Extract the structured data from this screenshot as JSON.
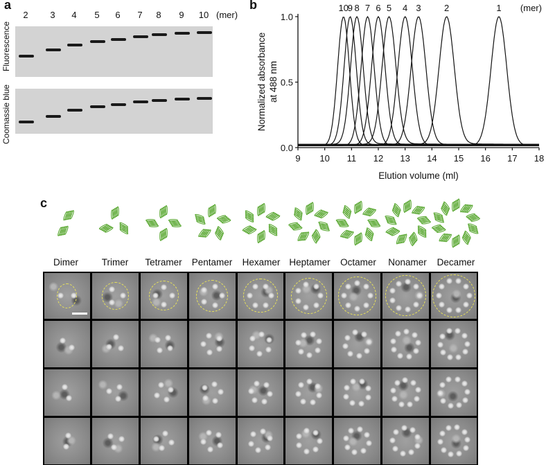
{
  "panel_a": {
    "letter": "a",
    "lanes": [
      "2",
      "3",
      "4",
      "5",
      "6",
      "7",
      "8",
      "9",
      "10"
    ],
    "unit": "(mer)",
    "gel_labels": [
      "Fluorescence",
      "Coomassie blue"
    ]
  },
  "panel_b": {
    "letter": "b"
  },
  "chart_data": {
    "type": "line",
    "title": "",
    "xlabel": "Elution volume (ml)",
    "ylabel_line1": "Normalized absorbance",
    "ylabel_line2": "at 488 nm",
    "xlim": [
      9,
      18
    ],
    "ylim": [
      0,
      1.0
    ],
    "x_ticks": [
      "9",
      "10",
      "11",
      "12",
      "13",
      "14",
      "15",
      "16",
      "17",
      "18"
    ],
    "y_ticks": [
      "0.0",
      "0.5",
      "1.0"
    ],
    "peak_unit_label": "(mer)",
    "series": [
      {
        "name": "10",
        "peak_x": 10.7,
        "peak_y": 1.0
      },
      {
        "name": "9",
        "peak_x": 10.95,
        "peak_y": 1.0
      },
      {
        "name": "8",
        "peak_x": 11.2,
        "peak_y": 1.0
      },
      {
        "name": "7",
        "peak_x": 11.6,
        "peak_y": 1.0
      },
      {
        "name": "6",
        "peak_x": 12.0,
        "peak_y": 1.0
      },
      {
        "name": "5",
        "peak_x": 12.4,
        "peak_y": 1.0
      },
      {
        "name": "4",
        "peak_x": 13.0,
        "peak_y": 1.0
      },
      {
        "name": "3",
        "peak_x": 13.5,
        "peak_y": 1.0
      },
      {
        "name": "2",
        "peak_x": 14.55,
        "peak_y": 1.0
      },
      {
        "name": "1",
        "peak_x": 16.5,
        "peak_y": 1.0
      }
    ]
  },
  "panel_c": {
    "letter": "c",
    "columns": [
      "Dimer",
      "Trimer",
      "Tetramer",
      "Pentamer",
      "Hexamer",
      "Heptamer",
      "Octamer",
      "Nonamer",
      "Decamer"
    ],
    "oligomer_counts": [
      2,
      3,
      4,
      5,
      6,
      7,
      8,
      9,
      10
    ],
    "em_rows": 4
  },
  "colors": {
    "gel_background": "#d3d3d3",
    "band": "#1a1a1a",
    "protein_green": "#5aa832",
    "outline_yellow": "#e8e25a"
  }
}
